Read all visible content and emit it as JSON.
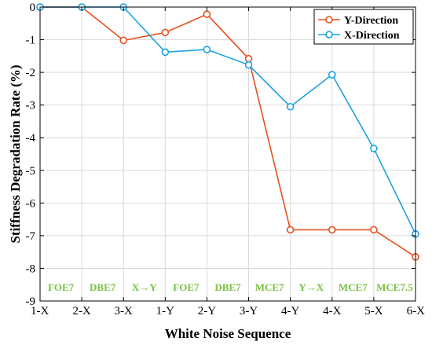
{
  "chart_data": {
    "type": "line",
    "categories": [
      "1-X",
      "2-X",
      "3-X",
      "1-Y",
      "2-Y",
      "3-Y",
      "4-Y",
      "4-X",
      "5-X",
      "6-X"
    ],
    "xlabel": "White Noise Sequence",
    "ylabel": "Stiffness Degradation Rate (%)",
    "ylim": [
      -9,
      0
    ],
    "yticks": [
      0,
      -1,
      -2,
      -3,
      -4,
      -5,
      -6,
      -7,
      -8,
      -9
    ],
    "grid": true,
    "legend_position": "top-right",
    "series": [
      {
        "name": "Y-Direction",
        "color": "#E8501F",
        "marker": "circle",
        "values": [
          0,
          0,
          -1.02,
          -0.78,
          -0.22,
          -1.58,
          -6.82,
          -6.82,
          -6.82,
          -7.65
        ]
      },
      {
        "name": "X-Direction",
        "color": "#1BA1E2",
        "marker": "circle",
        "values": [
          0,
          0,
          0,
          -1.38,
          -1.3,
          -1.77,
          -3.05,
          -2.07,
          -4.33,
          -6.95
        ]
      }
    ],
    "annotations": {
      "color": "#7AC143",
      "labels": [
        "FOE7",
        "DBE7",
        "X→Y",
        "FOE7",
        "DBE7",
        "MCE7",
        "Y→X",
        "MCE7",
        "MCE7.5"
      ]
    }
  }
}
